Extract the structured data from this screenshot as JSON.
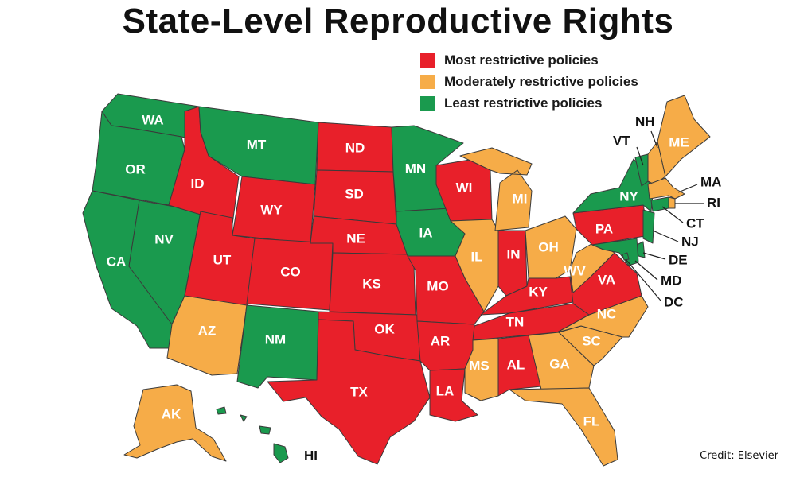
{
  "title": "State-Level Reproductive Rights",
  "credit": "Credit: Elsevier",
  "colors": {
    "most": "#e8202a",
    "moderate": "#f6ac48",
    "least": "#1a9a4e"
  },
  "legend": [
    {
      "category": "most",
      "label": "Most restrictive policies"
    },
    {
      "category": "moderate",
      "label": "Moderately restrictive policies"
    },
    {
      "category": "least",
      "label": "Least restrictive policies"
    }
  ],
  "states": {
    "WA": "least",
    "OR": "least",
    "CA": "least",
    "NV": "least",
    "MT": "least",
    "MN": "least",
    "IA": "least",
    "NM": "least",
    "NY": "least",
    "VT": "least",
    "NJ": "least",
    "DE": "least",
    "MD": "least",
    "DC": "least",
    "CT": "least",
    "HI": "least",
    "ID": "most",
    "WY": "most",
    "UT": "most",
    "CO": "most",
    "ND": "most",
    "SD": "most",
    "NE": "most",
    "KS": "most",
    "OK": "most",
    "TX": "most",
    "MO": "most",
    "AR": "most",
    "LA": "most",
    "WI": "most",
    "IN": "most",
    "KY": "most",
    "TN": "most",
    "AL": "most",
    "PA": "most",
    "VA": "most",
    "AZ": "moderate",
    "AK": "moderate",
    "MI": "moderate",
    "IL": "moderate",
    "OH": "moderate",
    "WV": "moderate",
    "MS": "moderate",
    "GA": "moderate",
    "SC": "moderate",
    "NC": "moderate",
    "FL": "moderate",
    "ME": "moderate",
    "NH": "moderate",
    "MA": "moderate",
    "RI": "moderate"
  }
}
